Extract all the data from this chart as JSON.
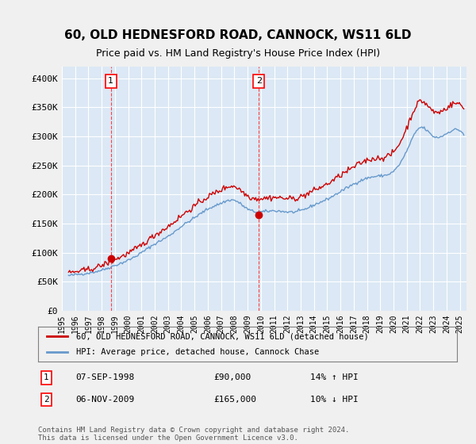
{
  "title": "60, OLD HEDNESFORD ROAD, CANNOCK, WS11 6LD",
  "subtitle": "Price paid vs. HM Land Registry's House Price Index (HPI)",
  "background_color": "#e8f0f8",
  "plot_bg_color": "#dce8f5",
  "ylabel_ticks": [
    "£0",
    "£50K",
    "£100K",
    "£150K",
    "£200K",
    "£250K",
    "£300K",
    "£350K",
    "£400K"
  ],
  "ytick_values": [
    0,
    50000,
    100000,
    150000,
    200000,
    250000,
    300000,
    350000,
    400000
  ],
  "ylim": [
    0,
    420000
  ],
  "xlim_start": 1995.5,
  "xlim_end": 2025.5,
  "red_line_color": "#cc0000",
  "blue_line_color": "#6699cc",
  "marker1_x": 1998.69,
  "marker1_y": 90000,
  "marker2_x": 2009.85,
  "marker2_y": 165000,
  "legend_label_red": "60, OLD HEDNESFORD ROAD, CANNOCK, WS11 6LD (detached house)",
  "legend_label_blue": "HPI: Average price, detached house, Cannock Chase",
  "table_row1": "1    07-SEP-1998          £90,000          14% ↑ HPI",
  "table_row2": "2    06-NOV-2009          £165,000        10% ↓ HPI",
  "footer": "Contains HM Land Registry data © Crown copyright and database right 2024.\nThis data is licensed under the Open Government Licence v3.0.",
  "years": [
    1995,
    1996,
    1997,
    1998,
    1999,
    2000,
    2001,
    2002,
    2003,
    2004,
    2005,
    2006,
    2007,
    2008,
    2009,
    2010,
    2011,
    2012,
    2013,
    2014,
    2015,
    2016,
    2017,
    2018,
    2019,
    2020,
    2021,
    2022,
    2023,
    2024,
    2025
  ],
  "hpi_values": [
    58000,
    62000,
    65000,
    70000,
    78000,
    87000,
    100000,
    115000,
    128000,
    145000,
    160000,
    175000,
    185000,
    190000,
    175000,
    170000,
    172000,
    170000,
    172000,
    182000,
    192000,
    205000,
    218000,
    228000,
    232000,
    240000,
    275000,
    315000,
    300000,
    305000,
    310000
  ],
  "hpi_indexed_values": [
    63000,
    67000,
    71000,
    78000,
    88000,
    99000,
    113000,
    130000,
    145000,
    163000,
    180000,
    196000,
    208000,
    214000,
    198000,
    193000,
    195000,
    193000,
    196000,
    207000,
    218000,
    233000,
    247000,
    259000,
    263000,
    273000,
    315000,
    360000,
    343000,
    349000,
    355000
  ]
}
